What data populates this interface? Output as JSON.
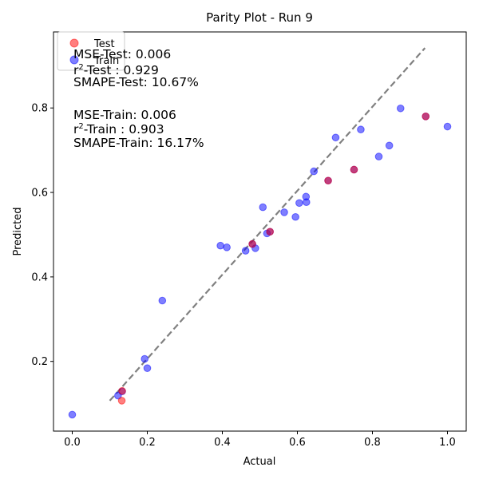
{
  "chart_data": {
    "type": "scatter",
    "title": "Parity Plot - Run 9",
    "xlabel": "Actual",
    "ylabel": "Predicted",
    "xlim": [
      -0.05,
      1.05
    ],
    "ylim": [
      0.035,
      0.98
    ],
    "xticks": [
      0.0,
      0.2,
      0.4,
      0.6,
      0.8,
      1.0
    ],
    "xtick_labels": [
      "0.0",
      "0.2",
      "0.4",
      "0.6",
      "0.8",
      "1.0"
    ],
    "yticks": [
      0.2,
      0.4,
      0.6,
      0.8
    ],
    "ytick_labels": [
      "0.2",
      "0.4",
      "0.6",
      "0.8"
    ],
    "grid": false,
    "legend_position": "top-left",
    "parity_line": {
      "x": [
        0.1,
        0.94
      ],
      "y": [
        0.107,
        0.942
      ],
      "color": "#808080",
      "style": "dashed"
    },
    "series": [
      {
        "name": "Test",
        "color": "#ff0000",
        "alpha": 0.5,
        "points": [
          {
            "x": 0.132,
            "y": 0.107
          },
          {
            "x": 0.133,
            "y": 0.13
          },
          {
            "x": 0.48,
            "y": 0.478
          },
          {
            "x": 0.527,
            "y": 0.507
          },
          {
            "x": 0.682,
            "y": 0.628
          },
          {
            "x": 0.751,
            "y": 0.654
          },
          {
            "x": 0.942,
            "y": 0.78
          }
        ]
      },
      {
        "name": "Train",
        "color": "#0000ff",
        "alpha": 0.5,
        "points": [
          {
            "x": 0.0,
            "y": 0.074
          },
          {
            "x": 0.122,
            "y": 0.119
          },
          {
            "x": 0.133,
            "y": 0.129
          },
          {
            "x": 0.193,
            "y": 0.206
          },
          {
            "x": 0.2,
            "y": 0.184
          },
          {
            "x": 0.24,
            "y": 0.344
          },
          {
            "x": 0.395,
            "y": 0.474
          },
          {
            "x": 0.412,
            "y": 0.47
          },
          {
            "x": 0.462,
            "y": 0.462
          },
          {
            "x": 0.48,
            "y": 0.478
          },
          {
            "x": 0.488,
            "y": 0.468
          },
          {
            "x": 0.508,
            "y": 0.565
          },
          {
            "x": 0.519,
            "y": 0.503
          },
          {
            "x": 0.527,
            "y": 0.507
          },
          {
            "x": 0.565,
            "y": 0.553
          },
          {
            "x": 0.595,
            "y": 0.542
          },
          {
            "x": 0.605,
            "y": 0.575
          },
          {
            "x": 0.623,
            "y": 0.59
          },
          {
            "x": 0.624,
            "y": 0.577
          },
          {
            "x": 0.644,
            "y": 0.65
          },
          {
            "x": 0.682,
            "y": 0.628
          },
          {
            "x": 0.702,
            "y": 0.73
          },
          {
            "x": 0.751,
            "y": 0.654
          },
          {
            "x": 0.769,
            "y": 0.749
          },
          {
            "x": 0.817,
            "y": 0.685
          },
          {
            "x": 0.845,
            "y": 0.711
          },
          {
            "x": 0.875,
            "y": 0.799
          },
          {
            "x": 0.942,
            "y": 0.78
          },
          {
            "x": 1.0,
            "y": 0.756
          }
        ]
      }
    ],
    "metrics": {
      "test": [
        {
          "label": "MSE-Test",
          "value": "0.006"
        },
        {
          "label": "r",
          "sup": "2",
          "label_suffix": "-Test :",
          "value": "0.929"
        },
        {
          "label": "SMAPE-Test",
          "value": "10.67%"
        }
      ],
      "train": [
        {
          "label": "MSE-Train",
          "value": "0.006"
        },
        {
          "label": "r",
          "sup": "2",
          "label_suffix": "-Train :",
          "value": "0.903"
        },
        {
          "label": "SMAPE-Train",
          "value": "16.17%"
        }
      ]
    }
  }
}
